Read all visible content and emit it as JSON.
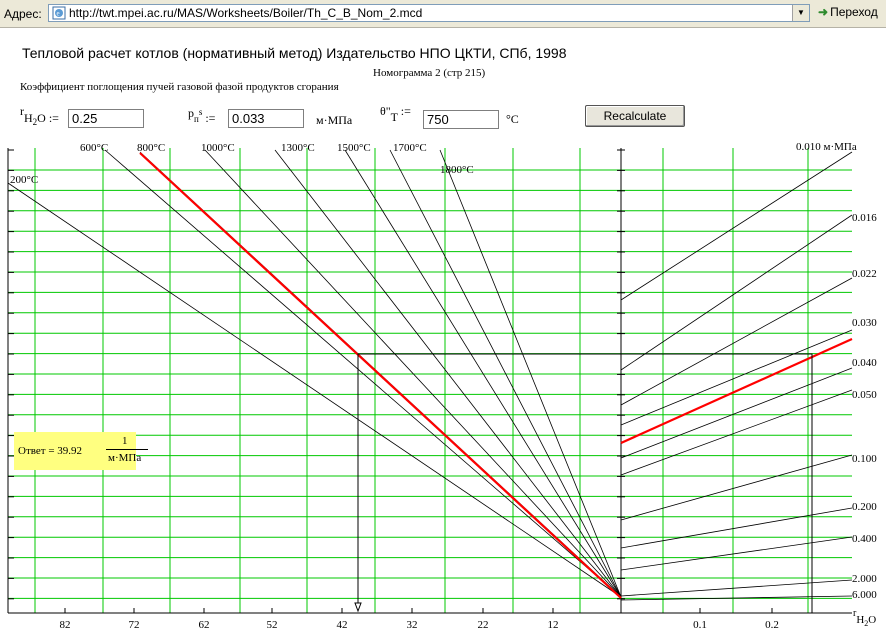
{
  "address_bar": {
    "label": "Адрес:",
    "url": "http://twt.mpei.ac.ru/MAS/Worksheets/Boiler/Th_C_B_Nom_2.mcd",
    "go_label": "Переход"
  },
  "worksheet": {
    "title": "Тепловой расчет котлов (нормативный метод) Издательство НПО ЦКТИ, СПб, 1998",
    "nomogram": "Номограмма 2 (стр 215)",
    "description": "Коэффициент поглощения пучей газовой фазой продуктов сгорания"
  },
  "params": {
    "r_h2o": {
      "symbol": "r",
      "sub": "H",
      "sub2": "2",
      "rest": "O :=",
      "value": "0.25"
    },
    "p_ns": {
      "symbol": "p",
      "sub": "п",
      "sup": "s",
      "rest": ":=",
      "value": "0.033",
      "unit": "м·МПа"
    },
    "theta": {
      "symbol": "θ\"",
      "sub": "T",
      "rest": ":=",
      "value": "750",
      "unit": "°C"
    }
  },
  "recalculate_label": "Recalculate",
  "answer": {
    "label": "Ответ = 39.92",
    "numerator": "1",
    "denominator": "м·МПа"
  },
  "chart_data": {
    "type": "nomogram",
    "x_ticks_left": [
      "82",
      "72",
      "62",
      "52",
      "42",
      "32",
      "22",
      "12"
    ],
    "x_ticks_right": [
      "0.1",
      "0.2"
    ],
    "x_axis_label_right": "r",
    "x_axis_label_sub": "H",
    "x_axis_label_sub2": "2",
    "x_axis_label_rest": "O",
    "temperature_labels": [
      "200°C",
      "600°C",
      "800°C",
      "1000°C",
      "1300°C",
      "1500°C",
      "1700°C",
      "1800°C"
    ],
    "pressure_labels": [
      "0.010 м·МПа",
      "0.016",
      "0.022",
      "0.030",
      "0.040",
      "0.050",
      "0.100",
      "0.200",
      "0.400",
      "2.000",
      "6.000"
    ],
    "highlight_temperature_label": "800°C",
    "highlight_pressure_label": "0.033",
    "result_left_axis": 39.92,
    "input_r_h2o": 0.25,
    "colors": {
      "grid": "#00c800",
      "highlight": "#ff0000",
      "answer_bg": "#ffff80"
    }
  }
}
